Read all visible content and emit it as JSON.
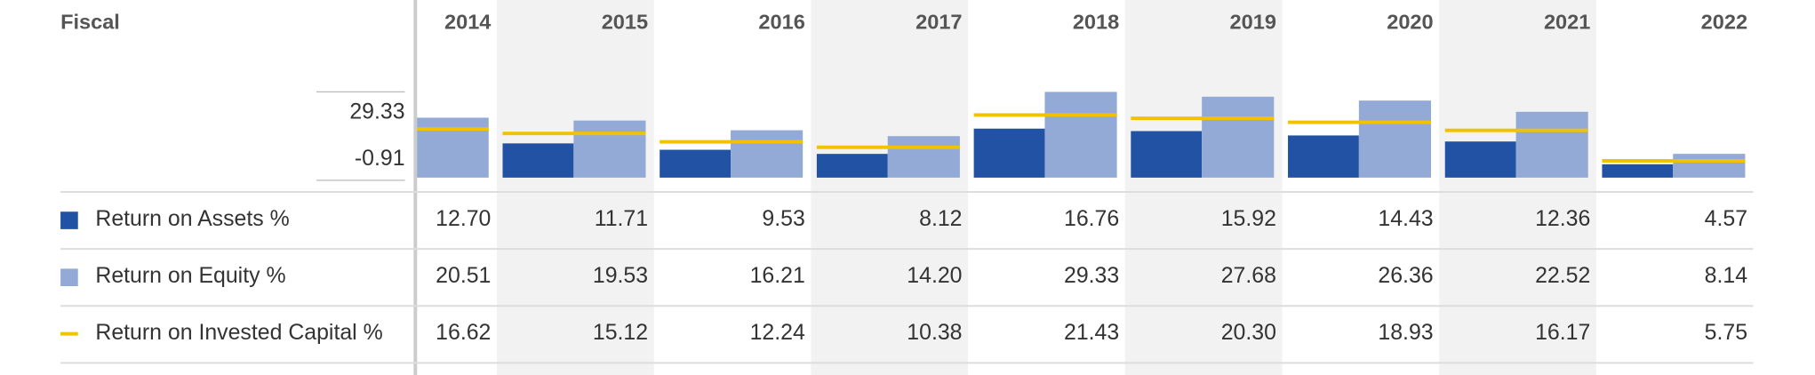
{
  "chart_data": {
    "type": "bar",
    "header": "Fiscal",
    "categories": [
      "2014",
      "2015",
      "2016",
      "2017",
      "2018",
      "2019",
      "2020",
      "2021",
      "2022"
    ],
    "series": [
      {
        "name": "Return on Assets %",
        "color": "#2152a3",
        "marker": "bar",
        "values": [
          12.7,
          11.71,
          9.53,
          8.12,
          16.76,
          15.92,
          14.43,
          12.36,
          4.57
        ],
        "value_labels": [
          "12.70",
          "11.71",
          "9.53",
          "8.12",
          "16.76",
          "15.92",
          "14.43",
          "12.36",
          "4.57"
        ]
      },
      {
        "name": "Return on Equity %",
        "color": "#93aad6",
        "marker": "bar",
        "values": [
          20.51,
          19.53,
          16.21,
          14.2,
          29.33,
          27.68,
          26.36,
          22.52,
          8.14
        ],
        "value_labels": [
          "20.51",
          "19.53",
          "16.21",
          "14.20",
          "29.33",
          "27.68",
          "26.36",
          "22.52",
          "8.14"
        ]
      },
      {
        "name": "Return on Invested Capital %",
        "color": "#f2c200",
        "marker": "line",
        "values": [
          16.62,
          15.12,
          12.24,
          10.38,
          21.43,
          20.3,
          18.93,
          16.17,
          5.75
        ],
        "value_labels": [
          "16.62",
          "15.12",
          "12.24",
          "10.38",
          "21.43",
          "20.30",
          "18.93",
          "16.17",
          "5.75"
        ]
      }
    ],
    "ylim": [
      -0.91,
      29.33
    ],
    "yticks": [
      29.33,
      -0.91
    ]
  }
}
